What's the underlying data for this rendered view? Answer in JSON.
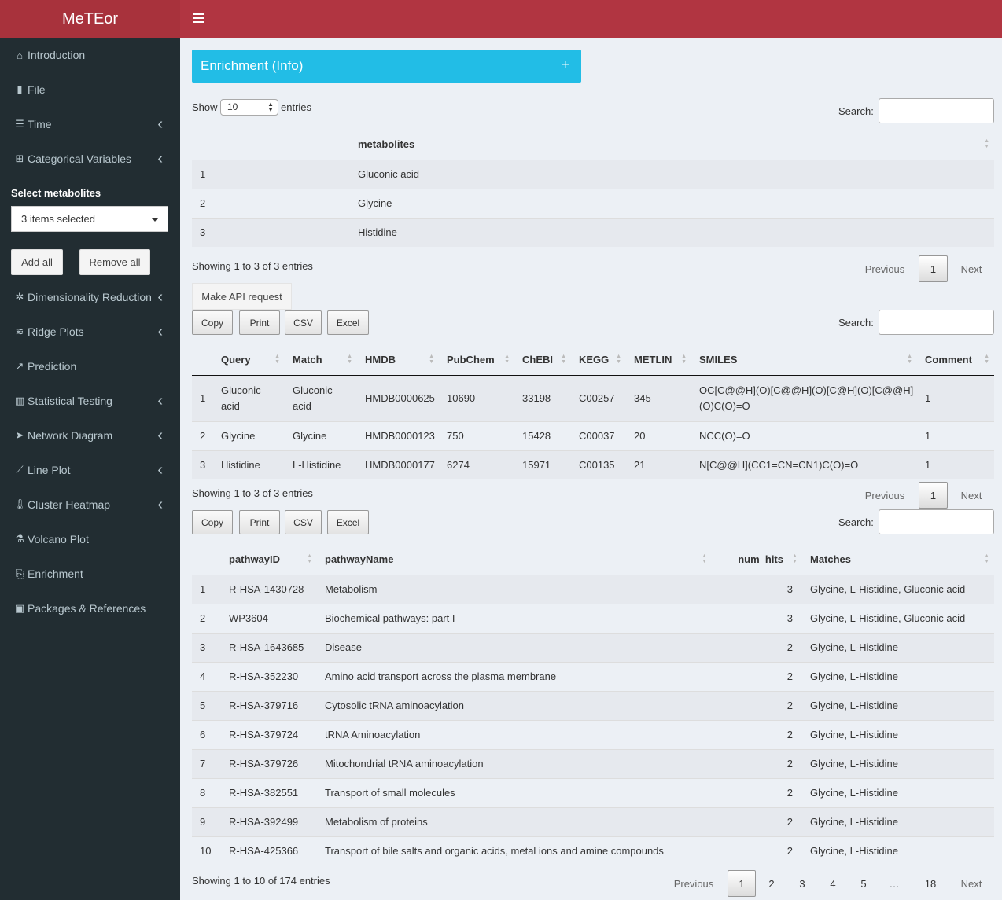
{
  "app": {
    "brand": "MeTEor"
  },
  "sidebar": {
    "items": [
      {
        "label": "Introduction",
        "icon": "home-icon",
        "glyph": "⌂",
        "chevron": false
      },
      {
        "label": "File",
        "icon": "file-icon",
        "glyph": "▮",
        "chevron": false
      },
      {
        "label": "Time",
        "icon": "sliders-icon",
        "glyph": "☰",
        "chevron": true
      },
      {
        "label": "Categorical Variables",
        "icon": "grid-icon",
        "glyph": "⊞",
        "chevron": true
      },
      {
        "label": "Dimensionality Reduction",
        "icon": "dharmachakra-icon",
        "glyph": "✲",
        "chevron": true
      },
      {
        "label": "Ridge Plots",
        "icon": "water-icon",
        "glyph": "≋",
        "chevron": true
      },
      {
        "label": "Prediction",
        "icon": "trend-icon",
        "glyph": "↗",
        "chevron": false
      },
      {
        "label": "Statistical Testing",
        "icon": "bar-chart-icon",
        "glyph": "▥",
        "chevron": true
      },
      {
        "label": "Network Diagram",
        "icon": "send-icon",
        "glyph": "➤",
        "chevron": true
      },
      {
        "label": "Line Plot",
        "icon": "line-chart-icon",
        "glyph": "⟋",
        "chevron": true
      },
      {
        "label": "Cluster Heatmap",
        "icon": "thermometer-icon",
        "glyph": "🌡",
        "chevron": true
      },
      {
        "label": "Volcano Plot",
        "icon": "flask-icon",
        "glyph": "⚗",
        "chevron": false
      },
      {
        "label": "Enrichment",
        "icon": "file-export-icon",
        "glyph": "⎘",
        "chevron": false
      },
      {
        "label": "Packages & References",
        "icon": "gift-icon",
        "glyph": "▣",
        "chevron": false
      }
    ],
    "select_label": "Select metabolites",
    "select_value": "3 items selected",
    "add_all": "Add all",
    "remove_all": "Remove all"
  },
  "box": {
    "title": "Enrichment (Info)",
    "plus": "+"
  },
  "table1": {
    "show": "Show",
    "length_value": "10",
    "entries": "entries",
    "search_label": "Search:",
    "header": "metabolites",
    "rows": [
      [
        "1",
        "Gluconic acid"
      ],
      [
        "2",
        "Glycine"
      ],
      [
        "3",
        "Histidine"
      ]
    ],
    "info": "Showing 1 to 3 of 3 entries",
    "prev": "Previous",
    "page": "1",
    "next": "Next"
  },
  "api_button": "Make API request",
  "buttons": {
    "copy": "Copy",
    "print": "Print",
    "csv": "CSV",
    "excel": "Excel"
  },
  "table2": {
    "search_label": "Search:",
    "headers": [
      "Query",
      "Match",
      "HMDB",
      "PubChem",
      "ChEBI",
      "KEGG",
      "METLIN",
      "SMILES",
      "Comment"
    ],
    "rows": [
      {
        "n": "1",
        "query": [
          "Gluconic",
          "acid"
        ],
        "match": [
          "Gluconic",
          "acid"
        ],
        "hmdb": "HMDB0000625",
        "pubchem": "10690",
        "chebi": "33198",
        "kegg": "C00257",
        "metlin": "345",
        "smiles": [
          "OC[C@@H](O)[C@@H](O)[C@H](O)[C@@H]",
          "(O)C(O)=O"
        ],
        "comment": "1"
      },
      {
        "n": "2",
        "query": [
          "Glycine"
        ],
        "match": [
          "Glycine"
        ],
        "hmdb": "HMDB0000123",
        "pubchem": "750",
        "chebi": "15428",
        "kegg": "C00037",
        "metlin": "20",
        "smiles": [
          "NCC(O)=O"
        ],
        "comment": "1"
      },
      {
        "n": "3",
        "query": [
          "Histidine"
        ],
        "match": [
          "L-Histidine"
        ],
        "hmdb": "HMDB0000177",
        "pubchem": "6274",
        "chebi": "15971",
        "kegg": "C00135",
        "metlin": "21",
        "smiles": [
          "N[C@@H](CC1=CN=CN1)C(O)=O"
        ],
        "comment": "1"
      }
    ],
    "info": "Showing 1 to 3 of 3 entries",
    "prev": "Previous",
    "page": "1",
    "next": "Next"
  },
  "table3": {
    "search_label": "Search:",
    "headers": [
      "pathwayID",
      "pathwayName",
      "num_hits",
      "Matches"
    ],
    "rows": [
      [
        "1",
        "R-HSA-1430728",
        "Metabolism",
        "3",
        "Glycine, L-Histidine, Gluconic acid"
      ],
      [
        "2",
        "WP3604",
        "Biochemical pathways: part I",
        "3",
        "Glycine, L-Histidine, Gluconic acid"
      ],
      [
        "3",
        "R-HSA-1643685",
        "Disease",
        "2",
        "Glycine, L-Histidine"
      ],
      [
        "4",
        "R-HSA-352230",
        "Amino acid transport across the plasma membrane",
        "2",
        "Glycine, L-Histidine"
      ],
      [
        "5",
        "R-HSA-379716",
        "Cytosolic tRNA aminoacylation",
        "2",
        "Glycine, L-Histidine"
      ],
      [
        "6",
        "R-HSA-379724",
        "tRNA Aminoacylation",
        "2",
        "Glycine, L-Histidine"
      ],
      [
        "7",
        "R-HSA-379726",
        "Mitochondrial tRNA aminoacylation",
        "2",
        "Glycine, L-Histidine"
      ],
      [
        "8",
        "R-HSA-382551",
        "Transport of small molecules",
        "2",
        "Glycine, L-Histidine"
      ],
      [
        "9",
        "R-HSA-392499",
        "Metabolism of proteins",
        "2",
        "Glycine, L-Histidine"
      ],
      [
        "10",
        "R-HSA-425366",
        "Transport of bile salts and organic acids, metal ions and amine compounds",
        "2",
        "Glycine, L-Histidine"
      ]
    ],
    "info": "Showing 1 to 10 of 174 entries",
    "prev": "Previous",
    "pages": [
      "1",
      "2",
      "3",
      "4",
      "5",
      "…",
      "18"
    ],
    "next": "Next"
  },
  "colors": {
    "header": "#b13541",
    "brand": "#a8323c",
    "sidebar": "#222d32",
    "info_box": "#22bde6",
    "content": "#ecf0f5"
  }
}
